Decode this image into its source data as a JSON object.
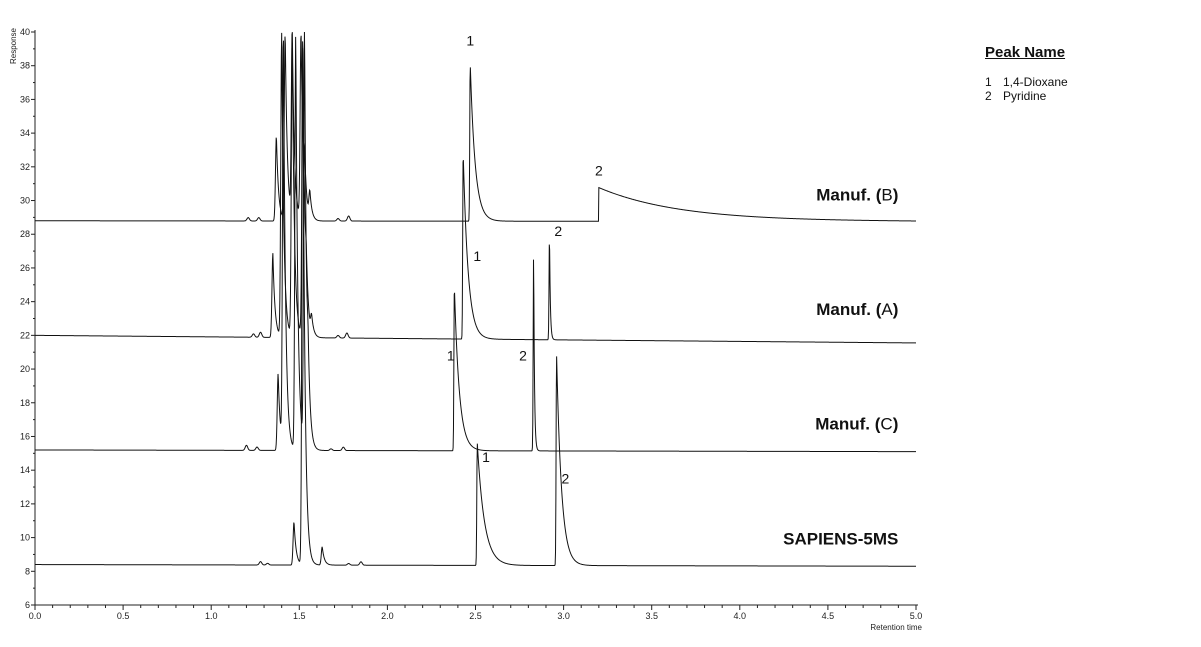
{
  "chart_data": {
    "type": "line",
    "title": "",
    "xlabel": "Retention time",
    "ylabel": "Response",
    "xlim": [
      0.0,
      5.0
    ],
    "ylim": [
      6,
      40
    ],
    "x_ticks": [
      "0.0",
      "0.5",
      "1.0",
      "1.5",
      "2.0",
      "2.5",
      "3.0",
      "3.5",
      "4.0",
      "4.5",
      "5.0"
    ],
    "y_ticks": [
      "6",
      "8",
      "10",
      "12",
      "14",
      "16",
      "18",
      "20",
      "22",
      "24",
      "26",
      "28",
      "30",
      "32",
      "34",
      "36",
      "38",
      "40"
    ],
    "legend": {
      "title": "Peak Name",
      "entries": [
        {
          "num": "1",
          "name": "1,4-Dioxane"
        },
        {
          "num": "2",
          "name": "Pyridine"
        }
      ]
    },
    "series": [
      {
        "name": "Manuf. (B)",
        "baseline": 28.8,
        "end_baseline": 28.75,
        "solvent": [
          [
            1.37,
            33.9
          ],
          [
            1.42,
            40
          ],
          [
            1.46,
            40
          ],
          [
            1.51,
            40
          ],
          [
            1.53,
            31.0
          ],
          [
            1.56,
            30.3
          ]
        ],
        "small": [
          [
            1.21,
            29.0
          ],
          [
            1.27,
            29.0
          ],
          [
            1.72,
            28.95
          ],
          [
            1.78,
            29.1
          ]
        ],
        "analytes": [
          {
            "peak": "1",
            "rt": 2.47,
            "apex": 38.2,
            "tail": 4
          },
          {
            "peak": "2",
            "rt": 3.2,
            "apex": 30.8,
            "tail": 0.45,
            "step": true
          }
        ]
      },
      {
        "name": "Manuf. (A)",
        "baseline": 22.0,
        "end_baseline": 21.55,
        "solvent": [
          [
            1.35,
            27.0
          ],
          [
            1.4,
            40
          ],
          [
            1.46,
            40
          ],
          [
            1.52,
            40
          ],
          [
            1.54,
            24.0
          ],
          [
            1.57,
            23.0
          ]
        ],
        "small": [
          [
            1.24,
            22.2
          ],
          [
            1.28,
            22.3
          ],
          [
            1.72,
            22.15
          ],
          [
            1.77,
            22.3
          ]
        ],
        "analytes": [
          {
            "peak": "1",
            "rt": 2.43,
            "apex": 33.1,
            "tail": 4
          },
          {
            "peak": "2",
            "rt": 2.92,
            "apex": 28.4,
            "tail": 0.1
          }
        ]
      },
      {
        "name": "Manuf. (C)",
        "baseline": 15.2,
        "end_baseline": 15.1,
        "solvent": [
          [
            1.38,
            19.8
          ],
          [
            1.41,
            40
          ],
          [
            1.48,
            40
          ],
          [
            1.53,
            40
          ],
          [
            1.55,
            17.8
          ]
        ],
        "small": [
          [
            1.2,
            15.5
          ],
          [
            1.26,
            15.4
          ],
          [
            1.68,
            15.3
          ],
          [
            1.75,
            15.4
          ]
        ],
        "analytes": [
          {
            "peak": "1",
            "rt": 2.38,
            "apex": 25.0,
            "tail": 4
          },
          {
            "peak": "2",
            "rt": 2.83,
            "apex": 27.2,
            "tail": 0.1
          }
        ]
      },
      {
        "name": "SAPIENS-5MS",
        "baseline": 8.4,
        "end_baseline": 8.3,
        "solvent": [
          [
            1.47,
            11.0
          ],
          [
            1.52,
            40
          ],
          [
            1.63,
            9.5
          ]
        ],
        "small": [
          [
            1.28,
            8.6
          ],
          [
            1.32,
            8.5
          ],
          [
            1.78,
            8.5
          ],
          [
            1.85,
            8.6
          ]
        ],
        "analytes": [
          {
            "peak": "1",
            "rt": 2.51,
            "apex": 15.7,
            "tail": 6
          },
          {
            "peak": "2",
            "rt": 2.96,
            "apex": 21.0,
            "tail": 4
          }
        ]
      }
    ],
    "series_labels": [
      {
        "series": "Manuf. (B)",
        "prefix": "Manuf. (",
        "letter": "B",
        "suffix": ")"
      },
      {
        "series": "Manuf. (A)",
        "prefix": "Manuf. (",
        "letter": "A",
        "suffix": ")"
      },
      {
        "series": "Manuf. (C)",
        "prefix": "Manuf. (",
        "letter": "C",
        "suffix": ")"
      },
      {
        "series": "SAPIENS-5MS",
        "prefix": "SAPIENS-5MS",
        "letter": "",
        "suffix": ""
      }
    ],
    "peak_labels": [
      {
        "text": "1",
        "x": 2.47,
        "y": 39.2
      },
      {
        "text": "2",
        "x": 3.2,
        "y": 31.5
      },
      {
        "text": "1",
        "x": 2.51,
        "y": 26.4
      },
      {
        "text": "2",
        "x": 2.97,
        "y": 27.9
      },
      {
        "text": "1",
        "x": 2.36,
        "y": 20.5
      },
      {
        "text": "2",
        "x": 2.77,
        "y": 20.5
      },
      {
        "text": "1",
        "x": 2.56,
        "y": 14.5
      },
      {
        "text": "2",
        "x": 3.01,
        "y": 13.2
      }
    ],
    "colors": {
      "line": "#111111",
      "axis": "#222222",
      "background": "#ffffff"
    }
  }
}
